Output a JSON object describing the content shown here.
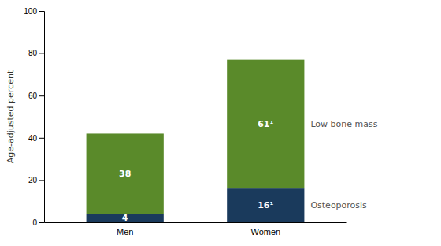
{
  "chart_data": {
    "type": "bar",
    "stacked": true,
    "data_labels": true,
    "grid": false,
    "categories": [
      "Men",
      "Women"
    ],
    "series": [
      {
        "name": "Osteoporosis",
        "color": "#1a3a5c",
        "values": [
          4,
          16
        ],
        "value_labels": [
          "4",
          "16¹"
        ]
      },
      {
        "name": "Low bone mass",
        "color": "#5a8a2a",
        "values": [
          38,
          61
        ],
        "value_labels": [
          "38",
          "61¹"
        ]
      }
    ],
    "ylabel": "Age-adjusted percent",
    "ylim": [
      0,
      100
    ],
    "yticks": [
      0,
      20,
      40,
      60,
      80,
      100
    ]
  }
}
